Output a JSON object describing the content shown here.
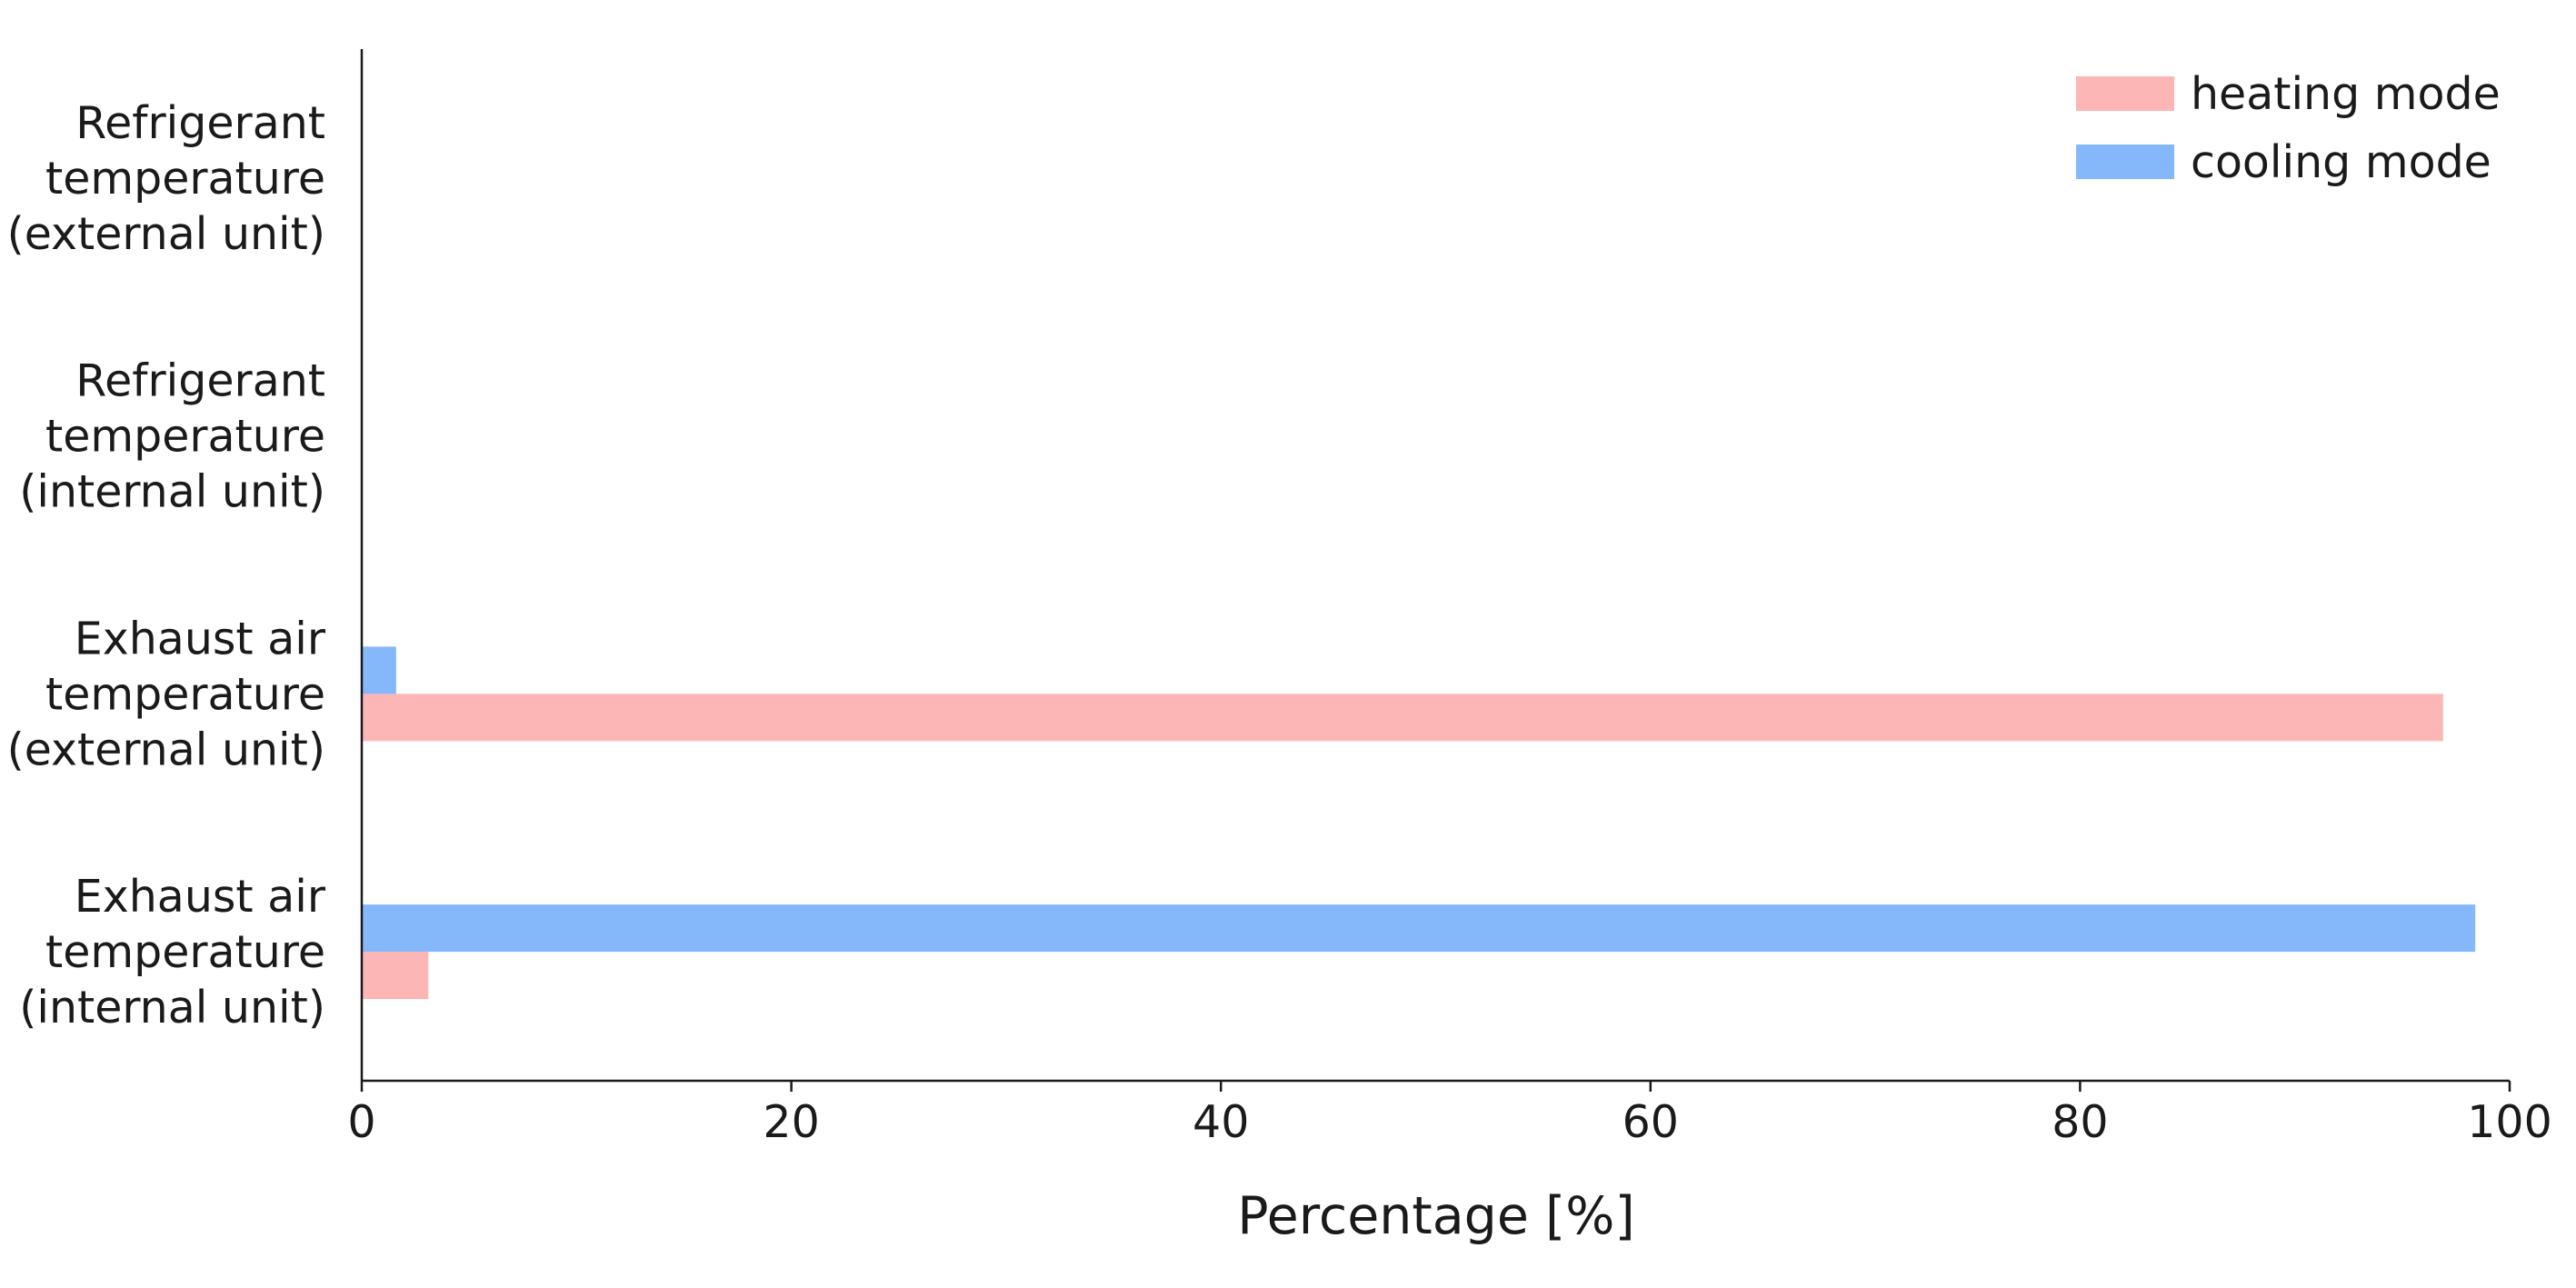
{
  "chart_data": {
    "type": "bar",
    "orientation": "horizontal",
    "categories": [
      [
        "Refrigerant",
        "temperature",
        "(external unit)"
      ],
      [
        "Refrigerant",
        "temperature",
        "(internal unit)"
      ],
      [
        "Exhaust air",
        "temperature",
        "(external unit)"
      ],
      [
        "Exhaust air",
        "temperature",
        "(internal unit)"
      ]
    ],
    "series": [
      {
        "name": "heating mode",
        "color": "#fbb6b5",
        "values": [
          0,
          0,
          96.9,
          3.1
        ]
      },
      {
        "name": "cooling mode",
        "color": "#84b8fb",
        "values": [
          0,
          0,
          1.6,
          98.4
        ]
      }
    ],
    "xlabel": "Percentage [%]",
    "ylabel": "",
    "xlim": [
      0,
      100
    ],
    "xticks": [
      0,
      20,
      40,
      60,
      80,
      100
    ],
    "grid": false,
    "legend_position": "top-right"
  }
}
